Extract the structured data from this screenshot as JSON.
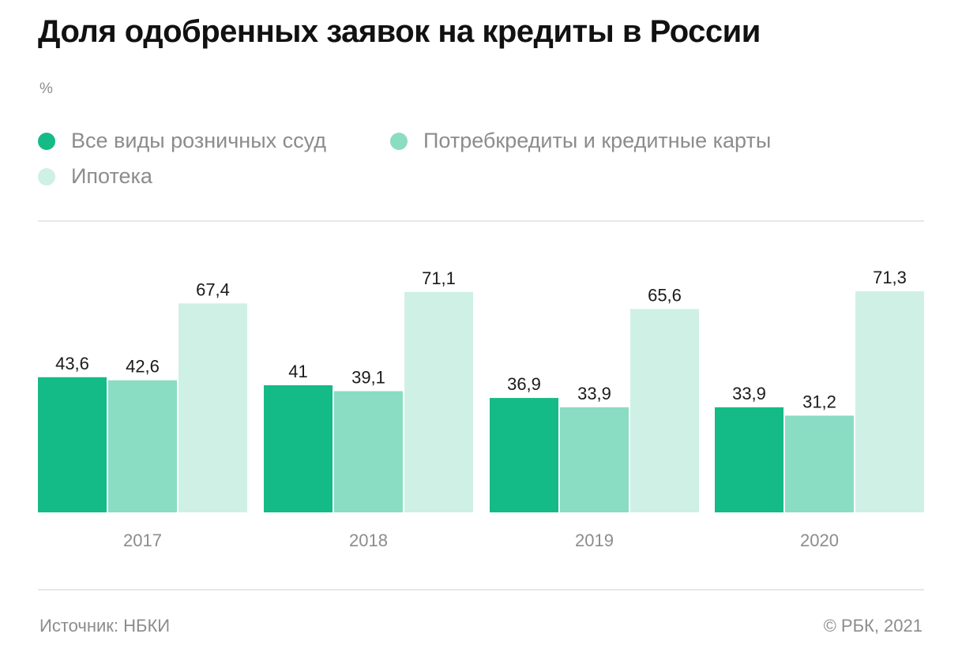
{
  "header": {
    "title": "Доля одобренных заявок на кредиты в России",
    "unit": "%"
  },
  "legend": [
    {
      "label": "Все виды розничных ссуд",
      "color": "#15bb86"
    },
    {
      "label": "Потребкредиты и кредитные карты",
      "color": "#8adcc3"
    },
    {
      "label": "Ипотека",
      "color": "#cff0e5"
    }
  ],
  "footer": {
    "source": "Источник:  НБКИ",
    "copyright": "© РБК, 2021"
  },
  "chart_data": {
    "type": "bar",
    "title": "Доля одобренных заявок на кредиты в России",
    "ylabel": "%",
    "categories": [
      "2017",
      "2018",
      "2019",
      "2020"
    ],
    "series": [
      {
        "name": "Все виды розничных ссуд",
        "color": "#15bb86",
        "values": [
          43.6,
          41,
          36.9,
          33.9
        ],
        "labels": [
          "43,6",
          "41",
          "36,9",
          "33,9"
        ]
      },
      {
        "name": "Потребкредиты и кредитные карты",
        "color": "#8adcc3",
        "values": [
          42.6,
          39.1,
          33.9,
          31.2
        ],
        "labels": [
          "42,6",
          "39,1",
          "33,9",
          "31,2"
        ]
      },
      {
        "name": "Ипотека",
        "color": "#cff0e5",
        "values": [
          67.4,
          71.1,
          65.6,
          71.3
        ],
        "labels": [
          "67,4",
          "71,1",
          "65,6",
          "71,3"
        ]
      }
    ],
    "ylim": [
      0,
      71.3
    ],
    "grid": false,
    "legend_position": "top-left"
  }
}
